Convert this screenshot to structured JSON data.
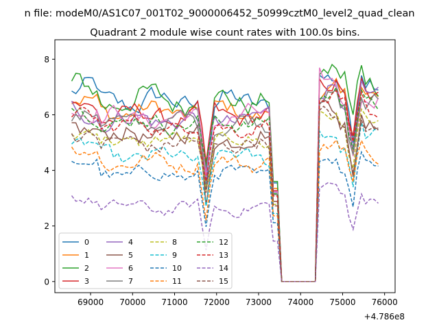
{
  "figure": {
    "suptitle": "n file: modeM0/AS1C07_001T02_9000006452_50999cztM0_level2_quad_clean",
    "title": "Quadrant 2 module wise count rates with 100.0s bins.",
    "x_offset_label": "+4.786e8"
  },
  "chart_data": {
    "type": "line",
    "title": "Quadrant 2 module wise count rates with 100.0s bins.",
    "xlabel": "",
    "ylabel": "",
    "x_offset": 478600000,
    "xlim": [
      68150,
      76250
    ],
    "ylim": [
      -0.4,
      8.7
    ],
    "xticks": [
      69000,
      70000,
      71000,
      72000,
      73000,
      74000,
      75000,
      76000
    ],
    "xtick_labels": [
      "69000",
      "70000",
      "71000",
      "72000",
      "73000",
      "74000",
      "75000",
      "76000"
    ],
    "yticks": [
      0,
      2,
      4,
      6,
      8
    ],
    "ytick_labels": [
      "0",
      "2",
      "4",
      "6",
      "8"
    ],
    "grid": false,
    "legend": {
      "placement": "lower-left",
      "columns": 4
    },
    "series": [
      {
        "name": "0",
        "color": "#1f77b4",
        "dash": "solid",
        "level": 6.45,
        "amp": 0.42,
        "post": 7.55,
        "spike": 1.7
      },
      {
        "name": "1",
        "color": "#ff7f0e",
        "dash": "solid",
        "level": 6.1,
        "amp": 0.35,
        "post": 6.95,
        "spike": 1.4
      },
      {
        "name": "2",
        "color": "#2ca02c",
        "dash": "solid",
        "level": 6.55,
        "amp": 0.45,
        "post": 7.65,
        "spike": 1.3
      },
      {
        "name": "3",
        "color": "#d62728",
        "dash": "solid",
        "level": 5.95,
        "amp": 0.35,
        "post": 7.05,
        "spike": 1.3
      },
      {
        "name": "4",
        "color": "#9467bd",
        "dash": "solid",
        "level": 5.85,
        "amp": 0.38,
        "post": 6.95,
        "spike": 1.5
      },
      {
        "name": "5",
        "color": "#8c564b",
        "dash": "solid",
        "level": 5.25,
        "amp": 0.4,
        "post": 6.25,
        "spike": 1.6
      },
      {
        "name": "6",
        "color": "#e377c2",
        "dash": "solid",
        "level": 5.9,
        "amp": 0.35,
        "post": 7.0,
        "spike": 1.4
      },
      {
        "name": "7",
        "color": "#7f7f7f",
        "dash": "solid",
        "level": 5.7,
        "amp": 0.35,
        "post": 6.7,
        "spike": 1.3
      },
      {
        "name": "8",
        "color": "#bcbd22",
        "dash": "dashed",
        "level": 5.05,
        "amp": 0.3,
        "post": 6.1,
        "spike": 1.2
      },
      {
        "name": "9",
        "color": "#17becf",
        "dash": "dashed",
        "level": 4.45,
        "amp": 0.3,
        "post": 5.45,
        "spike": 1.2
      },
      {
        "name": "10",
        "color": "#1f77b4",
        "dash": "dashed",
        "level": 3.85,
        "amp": 0.28,
        "post": 4.65,
        "spike": 1.2
      },
      {
        "name": "11",
        "color": "#ff7f0e",
        "dash": "dashed",
        "level": 4.3,
        "amp": 0.3,
        "post": 5.05,
        "spike": 1.2
      },
      {
        "name": "12",
        "color": "#2ca02c",
        "dash": "dashed",
        "level": 5.75,
        "amp": 0.3,
        "post": 6.75,
        "spike": 1.2
      },
      {
        "name": "13",
        "color": "#d62728",
        "dash": "dashed",
        "level": 5.6,
        "amp": 0.3,
        "post": 6.5,
        "spike": 1.2
      },
      {
        "name": "14",
        "color": "#9467bd",
        "dash": "dashed",
        "level": 2.65,
        "amp": 0.22,
        "post": 3.4,
        "spike": 1.0
      },
      {
        "name": "15",
        "color": "#8c564b",
        "dash": "dashed",
        "level": 4.95,
        "amp": 0.3,
        "post": 5.85,
        "spike": 1.2
      }
    ],
    "time": {
      "start": 68550,
      "step": 100,
      "end": 75850,
      "gap_start": 73200,
      "gap_zero_from": 73500,
      "gap_zero_to": 74400,
      "gap_end": 74600,
      "dips": [
        71750,
        75250
      ]
    }
  }
}
